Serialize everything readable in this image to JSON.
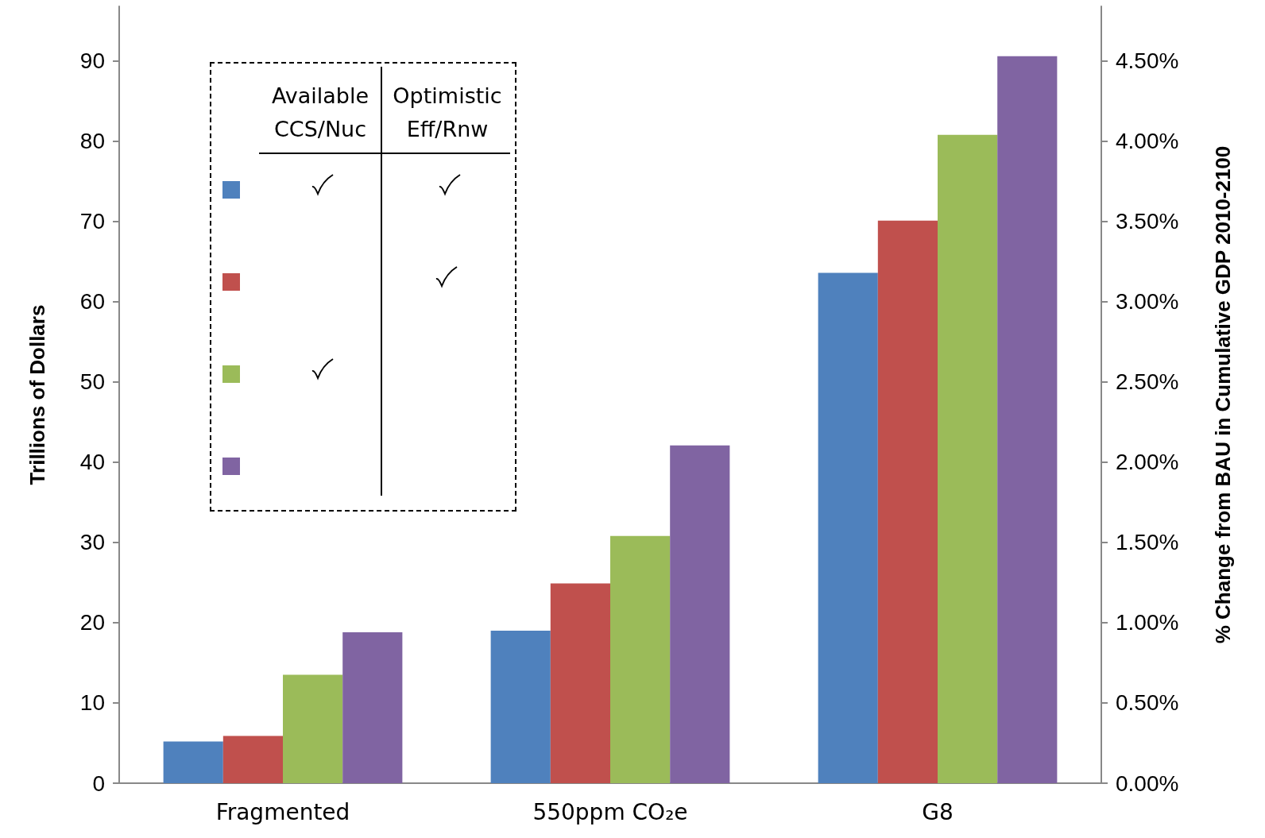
{
  "chart_data": {
    "type": "bar",
    "ylabel": "Trillions of Dollars",
    "y2label": "% Change from BAU in Cumulative GDP 2010-2100",
    "categories": [
      "Fragmented",
      "550ppm CO₂e",
      "G8"
    ],
    "series": [
      {
        "color": "#4f81bd",
        "values": [
          5.2,
          19.0,
          63.6
        ]
      },
      {
        "color": "#c0504d",
        "values": [
          5.9,
          24.9,
          70.1
        ]
      },
      {
        "color": "#9bbb59",
        "values": [
          13.5,
          30.8,
          80.8
        ]
      },
      {
        "color": "#8064a2",
        "values": [
          18.8,
          42.1,
          90.6
        ]
      }
    ],
    "ylim": [
      0,
      96.8
    ],
    "yticks": [
      0,
      10,
      20,
      30,
      40,
      50,
      60,
      70,
      80,
      90
    ],
    "y2lim": [
      0,
      4.84
    ],
    "y2ticks": [
      {
        "value": 0,
        "label": "0.00%"
      },
      {
        "value": 0.5,
        "label": "0.50%"
      },
      {
        "value": 1,
        "label": "1.00%"
      },
      {
        "value": 1.5,
        "label": "1.50%"
      },
      {
        "value": 2,
        "label": "2.00%"
      },
      {
        "value": 2.5,
        "label": "2.50%"
      },
      {
        "value": 3,
        "label": "3.00%"
      },
      {
        "value": 3.5,
        "label": "3.50%"
      },
      {
        "value": 4,
        "label": "4.00%"
      },
      {
        "value": 4.5,
        "label": "4.50%"
      }
    ],
    "annotations": [
      "Available CCS/Nuc",
      "Optimistic Eff/Rnw"
    ],
    "grid": false
  }
}
